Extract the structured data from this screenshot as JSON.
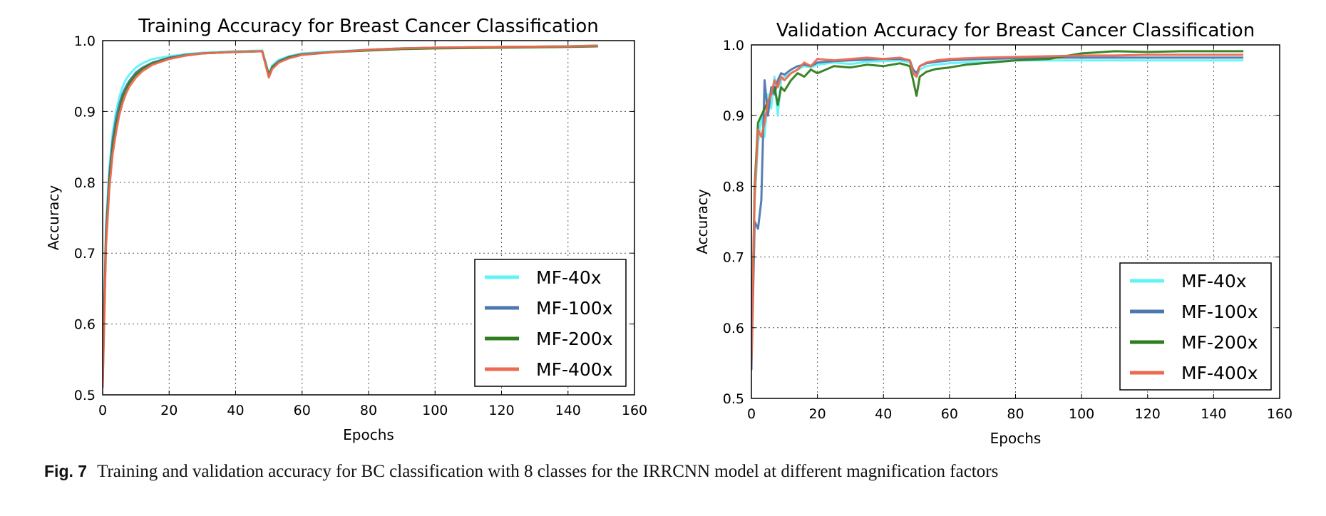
{
  "chart_data": [
    {
      "type": "line",
      "title": "Training Accuracy for Breast Cancer Classification",
      "xlabel": "Epochs",
      "ylabel": "Accuracy",
      "xlim": [
        0,
        160
      ],
      "ylim": [
        0.5,
        1.0
      ],
      "xticks": [
        "0",
        "20",
        "40",
        "60",
        "80",
        "100",
        "120",
        "140",
        "160"
      ],
      "yticks": [
        "0.5",
        "0.6",
        "0.7",
        "0.8",
        "0.9",
        "1.0"
      ],
      "grid": true,
      "legend_position": "lower-right",
      "series": [
        {
          "name": "MF-40x",
          "color": "#5ff4f6",
          "x": [
            0,
            1,
            2,
            3,
            4,
            5,
            6,
            7,
            8,
            10,
            12,
            15,
            20,
            25,
            30,
            40,
            48,
            49,
            50,
            51,
            53,
            56,
            60,
            70,
            80,
            90,
            100,
            120,
            140,
            149
          ],
          "y": [
            0.53,
            0.74,
            0.82,
            0.87,
            0.9,
            0.92,
            0.935,
            0.945,
            0.952,
            0.962,
            0.968,
            0.974,
            0.978,
            0.981,
            0.983,
            0.985,
            0.986,
            0.97,
            0.953,
            0.965,
            0.973,
            0.978,
            0.982,
            0.985,
            0.987,
            0.989,
            0.99,
            0.991,
            0.992,
            0.993
          ]
        },
        {
          "name": "MF-100x",
          "color": "#4c77b0",
          "x": [
            0,
            1,
            2,
            3,
            4,
            5,
            6,
            7,
            8,
            10,
            12,
            15,
            20,
            25,
            30,
            40,
            48,
            49,
            50,
            51,
            53,
            56,
            60,
            70,
            80,
            90,
            100,
            120,
            140,
            149
          ],
          "y": [
            0.52,
            0.73,
            0.81,
            0.86,
            0.89,
            0.91,
            0.925,
            0.935,
            0.943,
            0.955,
            0.962,
            0.969,
            0.976,
            0.98,
            0.982,
            0.984,
            0.985,
            0.968,
            0.95,
            0.963,
            0.971,
            0.977,
            0.981,
            0.984,
            0.987,
            0.989,
            0.99,
            0.991,
            0.992,
            0.993
          ]
        },
        {
          "name": "MF-200x",
          "color": "#2f7d1e",
          "x": [
            0,
            1,
            2,
            3,
            4,
            5,
            6,
            7,
            8,
            10,
            12,
            15,
            20,
            25,
            30,
            40,
            48,
            49,
            50,
            51,
            53,
            56,
            60,
            70,
            80,
            90,
            100,
            120,
            140,
            149
          ],
          "y": [
            0.52,
            0.72,
            0.8,
            0.85,
            0.88,
            0.9,
            0.92,
            0.93,
            0.94,
            0.952,
            0.96,
            0.968,
            0.975,
            0.979,
            0.982,
            0.984,
            0.985,
            0.967,
            0.952,
            0.962,
            0.97,
            0.976,
            0.98,
            0.984,
            0.986,
            0.988,
            0.989,
            0.99,
            0.991,
            0.992
          ]
        },
        {
          "name": "MF-400x",
          "color": "#ec6a51",
          "x": [
            0,
            1,
            2,
            3,
            4,
            5,
            6,
            7,
            8,
            10,
            12,
            15,
            20,
            25,
            30,
            40,
            48,
            49,
            50,
            51,
            53,
            56,
            60,
            70,
            80,
            90,
            100,
            120,
            140,
            149
          ],
          "y": [
            0.51,
            0.71,
            0.79,
            0.84,
            0.87,
            0.895,
            0.912,
            0.925,
            0.935,
            0.948,
            0.957,
            0.966,
            0.974,
            0.979,
            0.982,
            0.984,
            0.985,
            0.966,
            0.948,
            0.96,
            0.969,
            0.975,
            0.98,
            0.984,
            0.987,
            0.989,
            0.99,
            0.991,
            0.992,
            0.993
          ]
        }
      ]
    },
    {
      "type": "line",
      "title": "Validation Accuracy for Breast Cancer Classification",
      "xlabel": "Epochs",
      "ylabel": "Accuracy",
      "xlim": [
        0,
        160
      ],
      "ylim": [
        0.5,
        1.0
      ],
      "xticks": [
        "0",
        "20",
        "40",
        "60",
        "80",
        "100",
        "120",
        "140",
        "160"
      ],
      "yticks": [
        "0.5",
        "0.6",
        "0.7",
        "0.8",
        "0.9",
        "1.0"
      ],
      "grid": true,
      "legend_position": "lower-right",
      "series": [
        {
          "name": "MF-40x",
          "color": "#5ff4f6",
          "x": [
            0,
            1,
            2,
            3,
            4,
            5,
            6,
            7,
            8,
            9,
            10,
            12,
            14,
            16,
            18,
            20,
            25,
            30,
            35,
            40,
            45,
            48,
            49,
            50,
            51,
            53,
            56,
            60,
            65,
            70,
            80,
            90,
            100,
            110,
            120,
            130,
            140,
            149
          ],
          "y": [
            0.55,
            0.78,
            0.86,
            0.9,
            0.87,
            0.93,
            0.91,
            0.955,
            0.9,
            0.95,
            0.955,
            0.96,
            0.965,
            0.97,
            0.968,
            0.972,
            0.975,
            0.973,
            0.976,
            0.977,
            0.978,
            0.975,
            0.96,
            0.955,
            0.965,
            0.97,
            0.972,
            0.974,
            0.975,
            0.976,
            0.978,
            0.978,
            0.978,
            0.978,
            0.978,
            0.978,
            0.978,
            0.978
          ]
        },
        {
          "name": "MF-100x",
          "color": "#4c77b0",
          "x": [
            0,
            1,
            2,
            3,
            4,
            5,
            6,
            7,
            8,
            9,
            10,
            12,
            14,
            16,
            18,
            20,
            25,
            30,
            35,
            40,
            45,
            48,
            49,
            50,
            51,
            53,
            56,
            60,
            65,
            70,
            80,
            90,
            100,
            110,
            120,
            130,
            140,
            149
          ],
          "y": [
            0.54,
            0.75,
            0.74,
            0.78,
            0.95,
            0.9,
            0.94,
            0.93,
            0.95,
            0.96,
            0.958,
            0.965,
            0.97,
            0.972,
            0.97,
            0.975,
            0.977,
            0.978,
            0.979,
            0.98,
            0.98,
            0.978,
            0.965,
            0.96,
            0.97,
            0.974,
            0.976,
            0.978,
            0.979,
            0.98,
            0.981,
            0.982,
            0.982,
            0.982,
            0.982,
            0.982,
            0.982,
            0.982
          ]
        },
        {
          "name": "MF-200x",
          "color": "#2f7d1e",
          "x": [
            0,
            1,
            2,
            3,
            4,
            5,
            6,
            7,
            8,
            9,
            10,
            12,
            14,
            16,
            18,
            20,
            25,
            30,
            35,
            40,
            45,
            48,
            49,
            50,
            51,
            53,
            56,
            60,
            65,
            70,
            80,
            90,
            100,
            110,
            120,
            130,
            140,
            149
          ],
          "y": [
            0.56,
            0.8,
            0.89,
            0.9,
            0.91,
            0.92,
            0.93,
            0.94,
            0.915,
            0.94,
            0.935,
            0.95,
            0.96,
            0.955,
            0.965,
            0.96,
            0.97,
            0.968,
            0.972,
            0.97,
            0.974,
            0.97,
            0.95,
            0.928,
            0.955,
            0.962,
            0.966,
            0.968,
            0.972,
            0.974,
            0.978,
            0.98,
            0.988,
            0.991,
            0.99,
            0.991,
            0.991,
            0.991
          ]
        },
        {
          "name": "MF-400x",
          "color": "#ec6a51",
          "x": [
            0,
            1,
            2,
            3,
            4,
            5,
            6,
            7,
            8,
            9,
            10,
            12,
            14,
            16,
            18,
            20,
            25,
            30,
            35,
            40,
            45,
            48,
            49,
            50,
            51,
            53,
            56,
            60,
            65,
            70,
            80,
            90,
            100,
            110,
            120,
            130,
            140,
            149
          ],
          "y": [
            0.55,
            0.79,
            0.88,
            0.87,
            0.89,
            0.92,
            0.93,
            0.95,
            0.94,
            0.955,
            0.95,
            0.96,
            0.965,
            0.975,
            0.97,
            0.98,
            0.978,
            0.98,
            0.982,
            0.98,
            0.982,
            0.978,
            0.96,
            0.955,
            0.97,
            0.975,
            0.978,
            0.98,
            0.981,
            0.982,
            0.983,
            0.984,
            0.985,
            0.985,
            0.986,
            0.986,
            0.986,
            0.986
          ]
        }
      ]
    }
  ],
  "caption": {
    "label": "Fig. 7",
    "text": "Training and validation accuracy for BC classification with 8 classes for the IRRCNN model at different magnification factors"
  }
}
